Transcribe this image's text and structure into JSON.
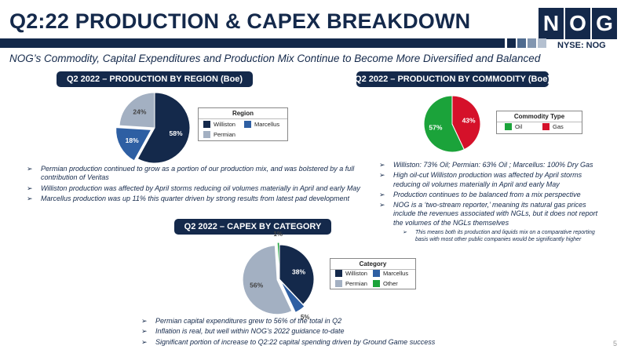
{
  "title": "Q2:22 PRODUCTION & CAPEX BREAKDOWN",
  "logo_letters": [
    "N",
    "O",
    "G"
  ],
  "ticker": "NYSE: NOG",
  "subtitle": "NOG’s Commodity, Capital Expenditures and Production Mix Continue to Become More Diversified and Balanced",
  "colors": {
    "navy": "#14294b",
    "williston": "#14294b",
    "marcellus": "#2e5fa3",
    "permian": "#a3b0c2",
    "oil": "#1ba33a",
    "gas": "#d5112a",
    "other": "#1ba33a"
  },
  "chart_data": [
    {
      "type": "pie",
      "title": "Q2 2022 – PRODUCTION BY REGION (Boe)",
      "legend_title": "Region",
      "categories": [
        "Williston",
        "Marcellus",
        "Permian"
      ],
      "values": [
        58,
        18,
        24
      ],
      "labels": [
        "58%",
        "18%",
        "24%"
      ],
      "legend_position": "right"
    },
    {
      "type": "pie",
      "title": "Q2 2022 – PRODUCTION BY COMMODITY (Boe)",
      "legend_title": "Commodity Type",
      "categories": [
        "Oil",
        "Gas"
      ],
      "values": [
        57,
        43
      ],
      "labels": [
        "57%",
        "43%"
      ],
      "legend_position": "right"
    },
    {
      "type": "pie",
      "title": "Q2 2022 – CAPEX BY CATEGORY",
      "legend_title": "Category",
      "categories": [
        "Williston",
        "Marcellus",
        "Permian",
        "Other"
      ],
      "values": [
        38,
        5,
        56,
        1
      ],
      "labels": [
        "38%",
        "5%",
        "56%",
        "1%"
      ],
      "legend_position": "right"
    }
  ],
  "bullets_region": [
    "Permian production continued to grow as a portion of our production mix, and was bolstered by a full contribution of Veritas",
    "Williston production was affected by April storms reducing oil volumes materially in April and early May",
    "Marcellus production was up 11% this quarter driven by strong results from latest pad development"
  ],
  "bullets_commodity": [
    "Williston: 73% Oil; Permian: 63% Oil ; Marcellus: 100% Dry Gas",
    "High oil-cut Williston production was affected by April storms reducing oil volumes materially in April and early May",
    "Production continues to be balanced from a mix perspective",
    "NOG is a ‘two-stream reporter,’ meaning its natural gas prices include the revenues associated with NGLs, but it does not report the volumes of the NGLs themselves"
  ],
  "sub_bullet": "This means both its production and liquids mix on a comparative reporting basis with most other public companies would be significantly higher",
  "bullets_capex": [
    "Permian capital expenditures grew to 56% of the total in Q2",
    "Inflation is real, but well within NOG’s 2022 guidance to-date",
    "Significant portion of increase to Q2:22 capital spending driven by Ground Game success"
  ],
  "page_number": "5"
}
